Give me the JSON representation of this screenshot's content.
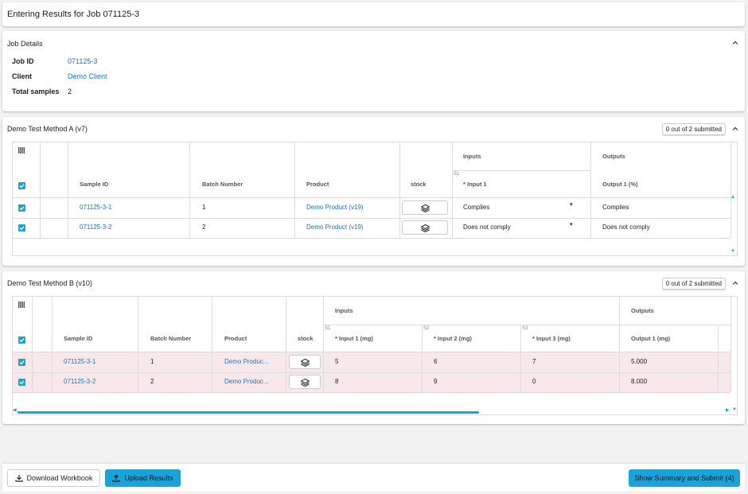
{
  "page": {
    "title": "Entering Results for Job 071125-3"
  },
  "job_details": {
    "title": "Job Details",
    "fields": [
      {
        "label": "Job ID",
        "value": "071125-3"
      },
      {
        "label": "Client",
        "value": "Demo Client"
      },
      {
        "label": "Total samples",
        "value": "2"
      }
    ]
  },
  "method_a": {
    "title": "Demo Test Method A (v7)",
    "badge": "0 out of 2 submitted",
    "headers": {
      "sample_id": "Sample ID",
      "batch": "Batch Number",
      "product": "Product",
      "stock": "stock",
      "inputs": "Inputs",
      "outputs": "Outputs",
      "input1_sub": "S1",
      "input1": "* Input 1",
      "output1": "Output 1 (%)"
    },
    "rows": [
      {
        "sample_id": "071125-3-1",
        "batch": "1",
        "product": "Demo Product (v19)",
        "input1": "Complies",
        "output1": "Complies"
      },
      {
        "sample_id": "071125-3-2",
        "batch": "2",
        "product": "Demo Product (v19)",
        "input1": "Does not comply",
        "output1": "Does not comply"
      }
    ]
  },
  "method_b": {
    "title": "Demo Test Method B (v10)",
    "badge": "0 out of 2 submitted",
    "headers": {
      "sample_id": "Sample ID",
      "batch": "Batch Number",
      "product": "Product",
      "stock": "stock",
      "inputs": "Inputs",
      "outputs": "Outputs",
      "s1": "S1",
      "s2": "S2",
      "s3": "S3",
      "input1": "* Input 1 (mg)",
      "input2": "* Input 2 (mg)",
      "input3": "* Input 3 (mg)",
      "output1": "Output 1 (mg)"
    },
    "rows": [
      {
        "sample_id": "071125-3-1",
        "batch": "1",
        "product": "Demo Produc...",
        "input1": "5",
        "input2": "6",
        "input3": "7",
        "output1": "5.000"
      },
      {
        "sample_id": "071125-3-2",
        "batch": "2",
        "product": "Demo Produc...",
        "input1": "8",
        "input2": "9",
        "input3": "0",
        "output1": "8.000"
      }
    ]
  },
  "footer": {
    "download_label": "Download Workbook",
    "upload_label": "Upload Results",
    "submit_label": "Show Summary and Submit (4)"
  },
  "colors": {
    "accent": "#1aa3d8",
    "link": "#1a73c8",
    "invalid_row": "#f9e8ea"
  },
  "icons": {
    "collapse": "chevron-up-icon",
    "columns": "columns-icon",
    "stock": "layers-icon",
    "dropdown": "caret-down-icon",
    "download": "download-icon",
    "upload": "upload-icon"
  }
}
